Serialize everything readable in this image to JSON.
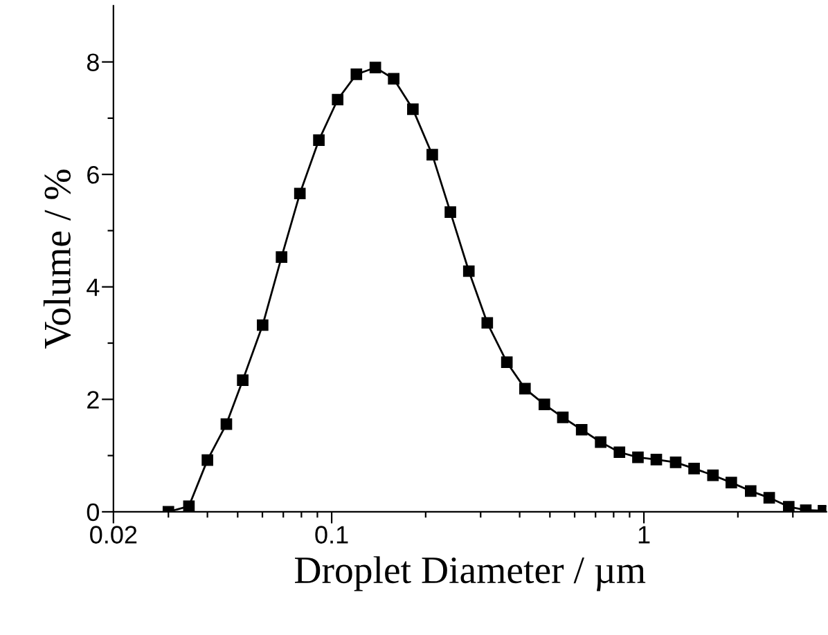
{
  "chart_data": {
    "type": "line",
    "xlabel": "Droplet Diameter / µm",
    "ylabel": "Volume / %",
    "log": "x",
    "marker": "square",
    "line_style": "solid",
    "x": [
      0.03,
      0.0349,
      0.04,
      0.046,
      0.0519,
      0.0601,
      0.0691,
      0.0791,
      0.091,
      0.1045,
      0.12,
      0.138,
      0.158,
      0.182,
      0.21,
      0.24,
      0.275,
      0.315,
      0.364,
      0.416,
      0.48,
      0.55,
      0.632,
      0.727,
      0.835,
      0.957,
      1.096,
      1.264,
      1.448,
      1.664,
      1.905,
      2.198,
      2.52,
      2.91,
      3.3,
      3.76
    ],
    "series": [
      {
        "color": "#000000",
        "values": [
          0.0,
          0.1,
          0.92,
          1.56,
          2.34,
          3.32,
          4.53,
          5.66,
          6.61,
          7.33,
          7.78,
          7.9,
          7.7,
          7.16,
          6.35,
          5.33,
          4.28,
          3.36,
          2.66,
          2.19,
          1.91,
          1.68,
          1.46,
          1.24,
          1.06,
          0.97,
          0.93,
          0.88,
          0.77,
          0.65,
          0.52,
          0.37,
          0.25,
          0.09,
          0.03,
          0.02
        ]
      }
    ],
    "xlim": [
      0.02,
      3.84
    ],
    "ylim": [
      0,
      9
    ],
    "xticks": [
      {
        "value": 0.02,
        "label": "0.02"
      },
      {
        "value": 0.03,
        "label": null
      },
      {
        "value": 0.04,
        "label": null
      },
      {
        "value": 0.05,
        "label": null
      },
      {
        "value": 0.06,
        "label": null
      },
      {
        "value": 0.07,
        "label": null
      },
      {
        "value": 0.08,
        "label": null
      },
      {
        "value": 0.09,
        "label": null
      },
      {
        "value": 0.1,
        "label": "0.1"
      },
      {
        "value": 0.2,
        "label": null
      },
      {
        "value": 0.3,
        "label": null
      },
      {
        "value": 0.4,
        "label": null
      },
      {
        "value": 0.5,
        "label": null
      },
      {
        "value": 0.6,
        "label": null
      },
      {
        "value": 0.7,
        "label": null
      },
      {
        "value": 0.8,
        "label": null
      },
      {
        "value": 0.9,
        "label": null
      },
      {
        "value": 1,
        "label": "1"
      },
      {
        "value": 2,
        "label": null
      },
      {
        "value": 3,
        "label": null
      }
    ],
    "yticks": [
      0,
      {
        "value": 1,
        "label": null
      },
      2,
      {
        "value": 3,
        "label": null
      },
      4,
      {
        "value": 5,
        "label": null
      },
      6,
      {
        "value": 7,
        "label": null
      },
      8
    ]
  }
}
